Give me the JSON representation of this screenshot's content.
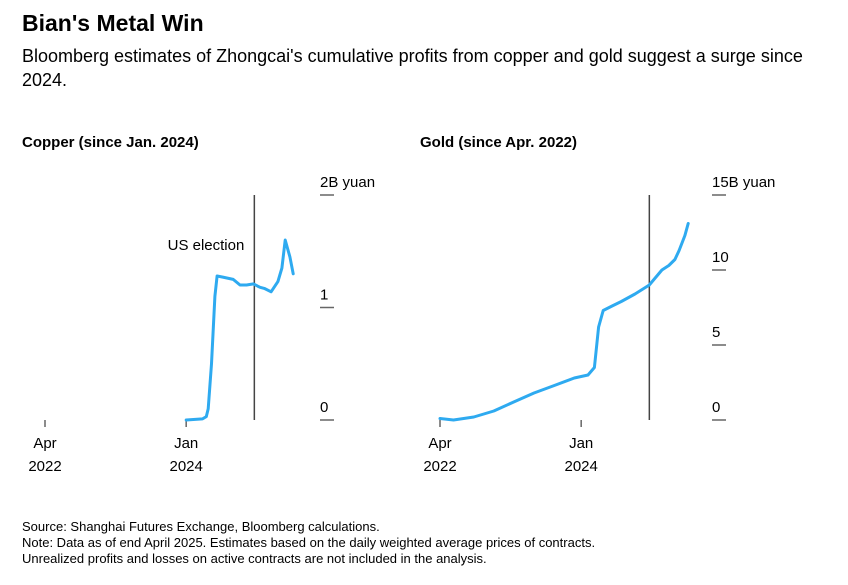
{
  "title": "Bian's Metal Win",
  "subtitle": "Bloomberg estimates of Zhongcai's cumulative profits from copper and gold suggest a surge since 2024.",
  "colors": {
    "line": "#2eaaf0",
    "marker": "#444444",
    "axis": "#666666"
  },
  "chart_data": [
    {
      "type": "line",
      "title": "Copper (since Jan. 2024)",
      "x_ticks": [
        {
          "date": "2022-04-01",
          "line1": "Apr",
          "line2": "2022"
        },
        {
          "date": "2024-01-01",
          "line1": "Jan",
          "line2": "2024"
        }
      ],
      "y_ticks": [
        {
          "value": 0,
          "label": "0"
        },
        {
          "value": 1,
          "label": "1"
        },
        {
          "value": 2,
          "label": "2B yuan"
        }
      ],
      "xlim": [
        "2022-04-01",
        "2025-05-31"
      ],
      "ylim": [
        0,
        2
      ],
      "y_unit": "B yuan",
      "annotation": {
        "date": "2024-11-05",
        "label": "US election"
      },
      "series": [
        {
          "x": [
            "2024-01-01",
            "2024-03-15",
            "2024-04-01",
            "2024-04-10",
            "2024-04-25",
            "2024-05-10",
            "2024-05-20",
            "2024-06-15",
            "2024-08-01",
            "2024-09-01",
            "2024-10-01",
            "2024-11-01",
            "2024-11-20",
            "2024-12-01",
            "2024-12-20",
            "2025-01-20",
            "2025-02-20",
            "2025-03-10",
            "2025-03-25",
            "2025-04-15",
            "2025-04-30"
          ],
          "y": [
            0,
            0.01,
            0.03,
            0.1,
            0.5,
            1.1,
            1.28,
            1.27,
            1.25,
            1.2,
            1.2,
            1.21,
            1.19,
            1.18,
            1.17,
            1.14,
            1.23,
            1.35,
            1.6,
            1.45,
            1.3
          ]
        }
      ]
    },
    {
      "type": "line",
      "title": "Gold (since Apr. 2022)",
      "x_ticks": [
        {
          "date": "2022-04-01",
          "line1": "Apr",
          "line2": "2022"
        },
        {
          "date": "2024-01-01",
          "line1": "Jan",
          "line2": "2024"
        }
      ],
      "y_ticks": [
        {
          "value": 0,
          "label": "0"
        },
        {
          "value": 5,
          "label": "5"
        },
        {
          "value": 10,
          "label": "10"
        },
        {
          "value": 15,
          "label": "15B yuan"
        }
      ],
      "xlim": [
        "2022-04-01",
        "2025-05-31"
      ],
      "ylim": [
        0,
        15
      ],
      "y_unit": "B yuan",
      "annotation": {
        "date": "2024-11-05",
        "label": ""
      },
      "series": [
        {
          "x": [
            "2022-04-01",
            "2022-06-01",
            "2022-09-01",
            "2022-12-01",
            "2023-03-01",
            "2023-06-01",
            "2023-09-01",
            "2023-12-01",
            "2024-02-01",
            "2024-03-01",
            "2024-03-20",
            "2024-04-10",
            "2024-05-20",
            "2024-07-01",
            "2024-09-01",
            "2024-11-05",
            "2025-01-01",
            "2025-02-01",
            "2025-03-01",
            "2025-03-20",
            "2025-04-15",
            "2025-04-30"
          ],
          "y": [
            0.1,
            0.0,
            0.2,
            0.6,
            1.2,
            1.8,
            2.3,
            2.8,
            3.0,
            3.5,
            6.2,
            7.3,
            7.6,
            7.9,
            8.4,
            9.0,
            10.0,
            10.3,
            10.7,
            11.3,
            12.3,
            13.1
          ]
        }
      ]
    }
  ],
  "footer": {
    "source": "Source: Shanghai Futures Exchange, Bloomberg calculations.",
    "note": "Note: Data as of end April 2025. Estimates based on the daily weighted average prices of contracts.",
    "note2": "Unrealized profits and losses on active contracts are not included in the analysis."
  }
}
